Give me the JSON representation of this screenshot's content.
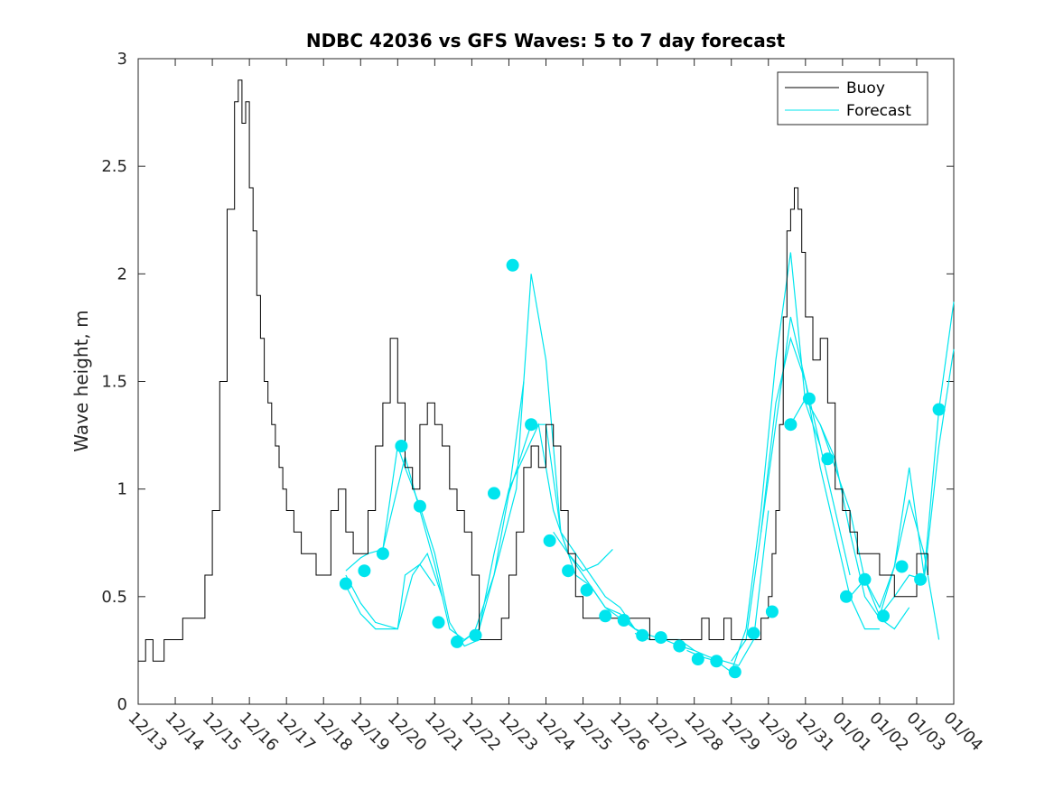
{
  "colors": {
    "buoy": "#000000",
    "forecast": "#00e5ee",
    "axis": "#262626"
  },
  "chart_data": {
    "type": "line",
    "title": "NDBC 42036 vs GFS Waves: 5 to 7 day forecast",
    "xlabel": "",
    "ylabel": "Wave height, m",
    "xlim": [
      0,
      22
    ],
    "ylim": [
      0,
      3
    ],
    "yticks": [
      0,
      0.5,
      1,
      1.5,
      2,
      2.5,
      3
    ],
    "ytick_labels": [
      "0",
      "0.5",
      "1",
      "1.5",
      "2",
      "2.5",
      "3"
    ],
    "xtick_labels": [
      "12/13",
      "12/14",
      "12/15",
      "12/16",
      "12/17",
      "12/18",
      "12/19",
      "12/20",
      "12/21",
      "12/22",
      "12/23",
      "12/24",
      "12/25",
      "12/26",
      "12/27",
      "12/28",
      "12/29",
      "12/30",
      "12/31",
      "01/01",
      "01/02",
      "01/03",
      "01/04"
    ],
    "legend": {
      "position": "top-right",
      "entries": [
        "Buoy",
        "Forecast"
      ]
    },
    "buoy": {
      "name": "Buoy",
      "x": [
        0,
        0.1,
        0.2,
        0.3,
        0.4,
        0.5,
        0.6,
        0.7,
        0.8,
        1.0,
        1.2,
        1.4,
        1.6,
        1.8,
        2.0,
        2.2,
        2.4,
        2.6,
        2.7,
        2.8,
        2.9,
        3.0,
        3.1,
        3.2,
        3.3,
        3.4,
        3.5,
        3.6,
        3.7,
        3.8,
        3.9,
        4.0,
        4.2,
        4.4,
        4.6,
        4.8,
        5.0,
        5.2,
        5.4,
        5.6,
        5.8,
        6.0,
        6.2,
        6.4,
        6.6,
        6.8,
        7.0,
        7.2,
        7.4,
        7.6,
        7.8,
        8.0,
        8.2,
        8.4,
        8.6,
        8.8,
        9.0,
        9.2,
        9.4,
        9.6,
        9.8,
        10.0,
        10.2,
        10.4,
        10.6,
        10.8,
        11.0,
        11.2,
        11.4,
        11.6,
        11.8,
        12.0,
        12.2,
        12.4,
        12.6,
        12.8,
        13.0,
        13.2,
        13.4,
        13.6,
        13.8,
        14.0,
        14.2,
        14.4,
        14.6,
        14.8,
        15.0,
        15.2,
        15.4,
        15.6,
        15.8,
        16.0,
        16.2,
        16.4,
        16.6,
        16.8,
        17.0,
        17.1,
        17.2,
        17.3,
        17.4,
        17.5,
        17.6,
        17.7,
        17.8,
        17.9,
        18.0,
        18.2,
        18.4,
        18.6,
        18.8,
        19.0,
        19.2,
        19.4,
        19.6,
        19.8,
        20.0,
        20.2,
        20.4,
        20.6,
        20.8,
        21.0,
        21.1,
        21.2,
        21.3
      ],
      "y": [
        0.2,
        0.2,
        0.3,
        0.3,
        0.2,
        0.2,
        0.2,
        0.3,
        0.3,
        0.3,
        0.4,
        0.4,
        0.4,
        0.6,
        0.9,
        1.5,
        2.3,
        2.8,
        2.9,
        2.7,
        2.8,
        2.4,
        2.2,
        1.9,
        1.7,
        1.5,
        1.4,
        1.3,
        1.2,
        1.1,
        1.0,
        0.9,
        0.8,
        0.7,
        0.7,
        0.6,
        0.6,
        0.9,
        1.0,
        0.8,
        0.7,
        0.7,
        0.9,
        1.2,
        1.4,
        1.7,
        1.4,
        1.1,
        1.0,
        1.3,
        1.4,
        1.3,
        1.2,
        1.0,
        0.9,
        0.8,
        0.6,
        0.3,
        0.3,
        0.3,
        0.4,
        0.6,
        0.8,
        1.1,
        1.2,
        1.1,
        1.3,
        1.2,
        0.9,
        0.7,
        0.5,
        0.4,
        0.4,
        0.4,
        0.4,
        0.4,
        0.4,
        0.4,
        0.4,
        0.4,
        0.3,
        0.3,
        0.3,
        0.3,
        0.3,
        0.3,
        0.3,
        0.4,
        0.3,
        0.3,
        0.4,
        0.3,
        0.3,
        0.3,
        0.3,
        0.4,
        0.5,
        0.7,
        0.9,
        1.3,
        1.8,
        2.2,
        2.3,
        2.4,
        2.3,
        2.1,
        1.8,
        1.6,
        1.7,
        1.4,
        1.0,
        0.9,
        0.8,
        0.7,
        0.7,
        0.7,
        0.6,
        0.6,
        0.5,
        0.5,
        0.5,
        0.7,
        0.7,
        0.7,
        0.6
      ]
    },
    "forecast_runs": [
      {
        "x": [
          5.6,
          6.0,
          6.4,
          7.0,
          7.2,
          7.6,
          8.0
        ],
        "y": [
          0.6,
          0.47,
          0.38,
          0.35,
          0.6,
          0.65,
          0.55
        ]
      },
      {
        "x": [
          5.6,
          6.0,
          6.4,
          7.0,
          7.4,
          7.8,
          8.2
        ],
        "y": [
          0.55,
          0.42,
          0.35,
          0.35,
          0.6,
          0.7,
          0.5
        ]
      },
      {
        "x": [
          5.6,
          6.0,
          6.2,
          6.6,
          7.0,
          7.2,
          7.6,
          8.0,
          8.4,
          8.8,
          9.2
        ],
        "y": [
          0.62,
          0.68,
          0.7,
          0.72,
          1.2,
          1.1,
          0.92,
          0.7,
          0.38,
          0.27,
          0.3
        ]
      },
      {
        "x": [
          6.6,
          7.2,
          7.6,
          8.0,
          8.4,
          8.8,
          9.2,
          9.6,
          10.0,
          10.4
        ],
        "y": [
          0.72,
          1.15,
          0.9,
          0.65,
          0.35,
          0.3,
          0.35,
          0.6,
          0.98,
          1.5
        ]
      },
      {
        "x": [
          8.6,
          9.2,
          9.6,
          10.0,
          10.4,
          10.8,
          11.2,
          11.6,
          12.0,
          12.4,
          12.8
        ],
        "y": [
          0.27,
          0.35,
          0.7,
          1.0,
          1.15,
          1.3,
          0.9,
          0.7,
          0.62,
          0.65,
          0.72
        ]
      },
      {
        "x": [
          9.0,
          9.6,
          10.2,
          10.6,
          11.0,
          11.4,
          11.8,
          12.2,
          12.6,
          13.0,
          13.4,
          13.8
        ],
        "y": [
          0.3,
          0.6,
          1.0,
          2.0,
          1.6,
          0.8,
          0.6,
          0.55,
          0.45,
          0.42,
          0.35,
          0.3
        ]
      },
      {
        "x": [
          10.0,
          10.6,
          11.0,
          11.4,
          11.8,
          12.2,
          12.6,
          13.0,
          13.4,
          13.8
        ],
        "y": [
          0.98,
          1.3,
          1.3,
          0.8,
          0.7,
          0.6,
          0.5,
          0.45,
          0.35,
          0.32
        ]
      },
      {
        "x": [
          11.2,
          11.8,
          12.2,
          12.6,
          13.0,
          13.4,
          13.8,
          14.2,
          14.6,
          15.0
        ],
        "y": [
          0.8,
          0.65,
          0.55,
          0.45,
          0.4,
          0.35,
          0.32,
          0.3,
          0.3,
          0.25
        ]
      },
      {
        "x": [
          13.4,
          13.8,
          14.2,
          14.6,
          15.0,
          15.4,
          15.8,
          16.2,
          16.6,
          17.0
        ],
        "y": [
          0.33,
          0.3,
          0.3,
          0.27,
          0.25,
          0.22,
          0.2,
          0.18,
          0.3,
          0.9
        ]
      },
      {
        "x": [
          14.8,
          15.2,
          15.6,
          16.0,
          16.4,
          16.8,
          17.2,
          17.6,
          18.0,
          18.4
        ],
        "y": [
          0.25,
          0.22,
          0.2,
          0.15,
          0.35,
          0.9,
          1.6,
          2.1,
          1.4,
          1.2
        ]
      },
      {
        "x": [
          16.0,
          16.4,
          16.8,
          17.2,
          17.6,
          18.0,
          18.4,
          18.8,
          19.2
        ],
        "y": [
          0.2,
          0.3,
          0.8,
          1.4,
          1.7,
          1.5,
          1.2,
          0.9,
          0.6
        ]
      },
      {
        "x": [
          16.8,
          17.2,
          17.6,
          18.0,
          18.4,
          18.8,
          19.2,
          19.6,
          20.0
        ],
        "y": [
          0.8,
          1.3,
          1.8,
          1.5,
          1.1,
          0.8,
          0.5,
          0.35,
          0.35
        ]
      },
      {
        "x": [
          17.6,
          18.0,
          18.4,
          18.8,
          19.2,
          19.6,
          20.0,
          20.4,
          20.8
        ],
        "y": [
          1.3,
          1.42,
          1.3,
          1.14,
          0.8,
          0.5,
          0.4,
          0.35,
          0.45
        ]
      },
      {
        "x": [
          18.4,
          18.8,
          19.2,
          19.6,
          20.0,
          20.4,
          20.8,
          21.2,
          21.6
        ],
        "y": [
          1.3,
          1.1,
          0.9,
          0.58,
          0.45,
          0.64,
          0.95,
          0.7,
          0.3
        ]
      },
      {
        "x": [
          19.2,
          19.6,
          20.0,
          20.4,
          20.8,
          21.2,
          21.6,
          22.0
        ],
        "y": [
          0.5,
          0.58,
          0.41,
          0.64,
          1.1,
          0.6,
          1.37,
          1.87
        ]
      },
      {
        "x": [
          20.0,
          20.4,
          20.8,
          21.2,
          21.6,
          22.0
        ],
        "y": [
          0.41,
          0.5,
          0.6,
          0.58,
          1.2,
          1.65
        ]
      }
    ],
    "forecast_markers": {
      "x": [
        5.6,
        6.1,
        6.6,
        7.1,
        7.6,
        8.1,
        8.6,
        9.1,
        9.6,
        10.1,
        10.6,
        11.1,
        11.6,
        12.1,
        12.6,
        13.1,
        13.6,
        14.1,
        14.6,
        15.1,
        15.6,
        16.1,
        16.6,
        17.1,
        17.6,
        18.1,
        18.6,
        19.1,
        19.6,
        20.1,
        20.6,
        21.1,
        21.6
      ],
      "y": [
        0.56,
        0.62,
        0.7,
        1.2,
        0.92,
        0.38,
        0.29,
        0.32,
        0.98,
        2.04,
        1.3,
        0.76,
        0.62,
        0.53,
        0.41,
        0.39,
        0.32,
        0.31,
        0.27,
        0.21,
        0.2,
        0.15,
        0.33,
        0.43,
        1.3,
        1.42,
        1.14,
        0.5,
        0.58,
        0.41,
        0.64,
        0.58,
        1.37
      ]
    }
  }
}
